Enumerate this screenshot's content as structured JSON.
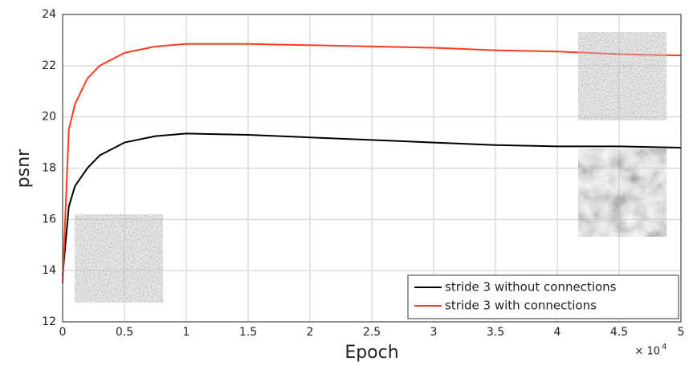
{
  "chart_data": {
    "type": "line",
    "x_label": "Epoch",
    "y_label": "psnr",
    "x_multiplier": "× 10",
    "x_multiplier_exp": "4",
    "x": [
      0,
      0.05,
      0.1,
      0.2,
      0.3,
      0.5,
      0.75,
      1,
      1.5,
      2,
      2.5,
      3,
      3.5,
      4,
      4.5,
      5
    ],
    "series": [
      {
        "name": "stride 3 without connections",
        "color": "#000000",
        "values": [
          13.8,
          16.5,
          17.3,
          18.0,
          18.5,
          19.0,
          19.25,
          19.35,
          19.3,
          19.2,
          19.1,
          19.0,
          18.9,
          18.85,
          18.85,
          18.8
        ]
      },
      {
        "name": "stride 3 with connections",
        "color": "#ff3b1f",
        "values": [
          13.5,
          19.5,
          20.5,
          21.5,
          22.0,
          22.5,
          22.75,
          22.85,
          22.85,
          22.8,
          22.75,
          22.7,
          22.6,
          22.55,
          22.45,
          22.4
        ]
      }
    ],
    "xlim": [
      0,
      5
    ],
    "ylim": [
      12,
      24
    ],
    "xticks": [
      0,
      0.5,
      1,
      1.5,
      2,
      2.5,
      3,
      3.5,
      4,
      4.5,
      5
    ],
    "yticks": [
      12,
      14,
      16,
      18,
      20,
      22,
      24
    ],
    "grid": true,
    "legend": "lower-right"
  }
}
